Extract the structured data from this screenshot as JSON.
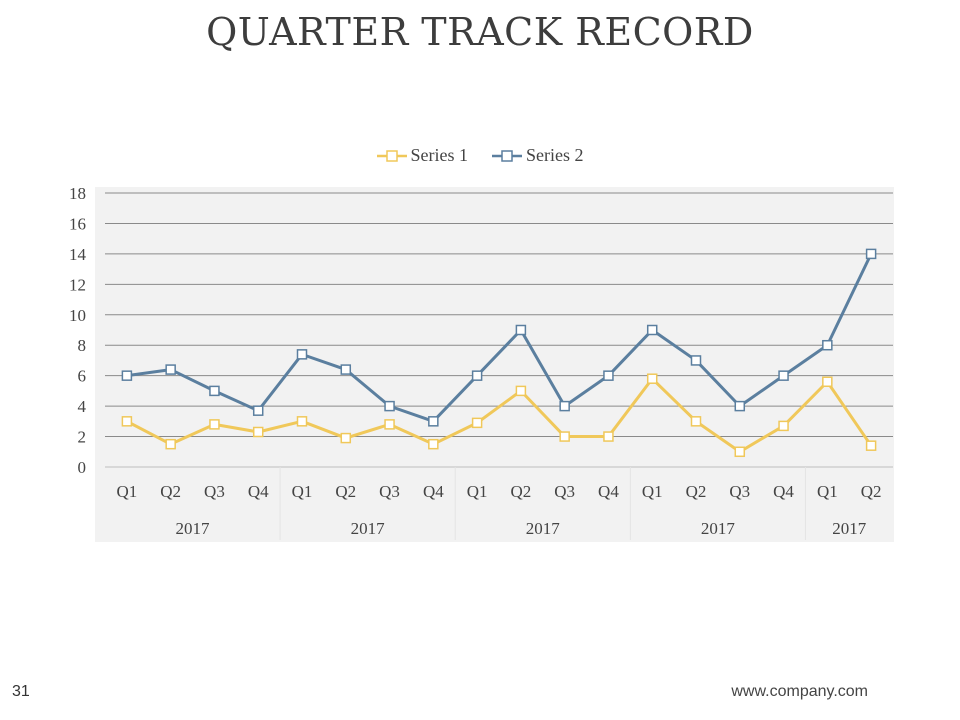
{
  "slide": {
    "title": "QUARTER TRACK RECORD",
    "page_number": "31",
    "footer_url": "www.company.com"
  },
  "chart_data": {
    "type": "line",
    "categories": [
      "Q1",
      "Q2",
      "Q3",
      "Q4",
      "Q1",
      "Q2",
      "Q3",
      "Q4",
      "Q1",
      "Q2",
      "Q3",
      "Q4",
      "Q1",
      "Q2",
      "Q3",
      "Q4",
      "Q1",
      "Q2"
    ],
    "groups": [
      {
        "label": "2017",
        "start": 0,
        "count": 4
      },
      {
        "label": "2017",
        "start": 4,
        "count": 4
      },
      {
        "label": "2017",
        "start": 8,
        "count": 4
      },
      {
        "label": "2017",
        "start": 12,
        "count": 4
      },
      {
        "label": "2017",
        "start": 16,
        "count": 2
      }
    ],
    "series": [
      {
        "name": "Series 1",
        "color": "#f0c85a",
        "values": [
          3,
          1.5,
          2.8,
          2.3,
          3,
          1.9,
          2.8,
          1.5,
          2.9,
          5,
          2,
          2,
          5.8,
          3,
          1,
          2.7,
          5.6,
          1.4
        ]
      },
      {
        "name": "Series 2",
        "color": "#5b7f9f",
        "values": [
          6,
          6.4,
          5,
          3.7,
          7.4,
          6.4,
          4,
          3,
          6,
          9,
          4,
          6,
          9,
          7,
          4,
          6,
          8,
          14
        ]
      }
    ],
    "ylim": [
      0,
      18
    ],
    "yticks": [
      0,
      2,
      4,
      6,
      8,
      10,
      12,
      14,
      16,
      18
    ],
    "grid": true,
    "legend": "top-center",
    "plot_background": "#f2f2f2"
  }
}
